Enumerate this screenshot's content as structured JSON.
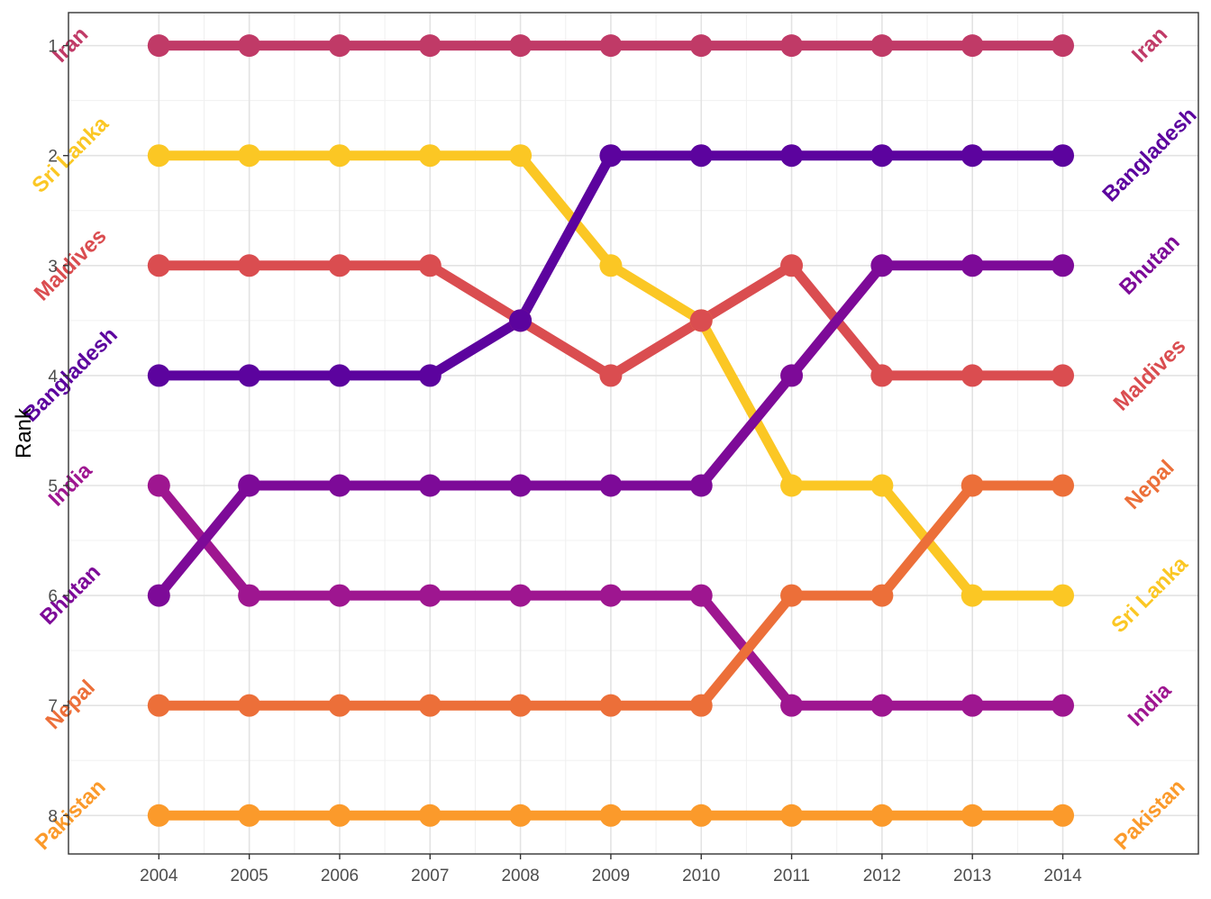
{
  "chart_data": {
    "type": "line",
    "title": "",
    "xlabel": "",
    "ylabel": "Rank",
    "x": [
      2004,
      2005,
      2006,
      2007,
      2008,
      2009,
      2010,
      2011,
      2012,
      2013,
      2014
    ],
    "xlim": [
      2003,
      2015.5
    ],
    "ylim": [
      8.35,
      0.7
    ],
    "y_reversed": true,
    "y_ticks": [
      1,
      2,
      3,
      4,
      5,
      6,
      7,
      8
    ],
    "grid": true,
    "legend": "none (series labelled at both ends)",
    "series": [
      {
        "name": "Iran",
        "color": "#C03A67",
        "values": [
          1,
          1,
          1,
          1,
          1,
          1,
          1,
          1,
          1,
          1,
          1
        ]
      },
      {
        "name": "Sri Lanka",
        "color": "#FBC724",
        "values": [
          2,
          2,
          2,
          2,
          2,
          3,
          3.5,
          5,
          5,
          6,
          6
        ]
      },
      {
        "name": "Maldives",
        "color": "#DA4D50",
        "values": [
          3,
          3,
          3,
          3,
          3.5,
          4,
          3.5,
          3,
          4,
          4,
          4
        ]
      },
      {
        "name": "Bangladesh",
        "color": "#5C039E",
        "values": [
          4,
          4,
          4,
          4,
          3.5,
          2,
          2,
          2,
          2,
          2,
          2
        ]
      },
      {
        "name": "India",
        "color": "#9E1690",
        "values": [
          5,
          6,
          6,
          6,
          6,
          6,
          6,
          7,
          7,
          7,
          7
        ]
      },
      {
        "name": "Bhutan",
        "color": "#7D0A98",
        "values": [
          6,
          5,
          5,
          5,
          5,
          5,
          5,
          4,
          3,
          3,
          3
        ]
      },
      {
        "name": "Nepal",
        "color": "#EC6F39",
        "values": [
          7,
          7,
          7,
          7,
          7,
          7,
          7,
          6,
          6,
          5,
          5
        ]
      },
      {
        "name": "Pakistan",
        "color": "#FB9A2B",
        "values": [
          8,
          8,
          8,
          8,
          8,
          8,
          8,
          8,
          8,
          8,
          8
        ]
      }
    ]
  }
}
